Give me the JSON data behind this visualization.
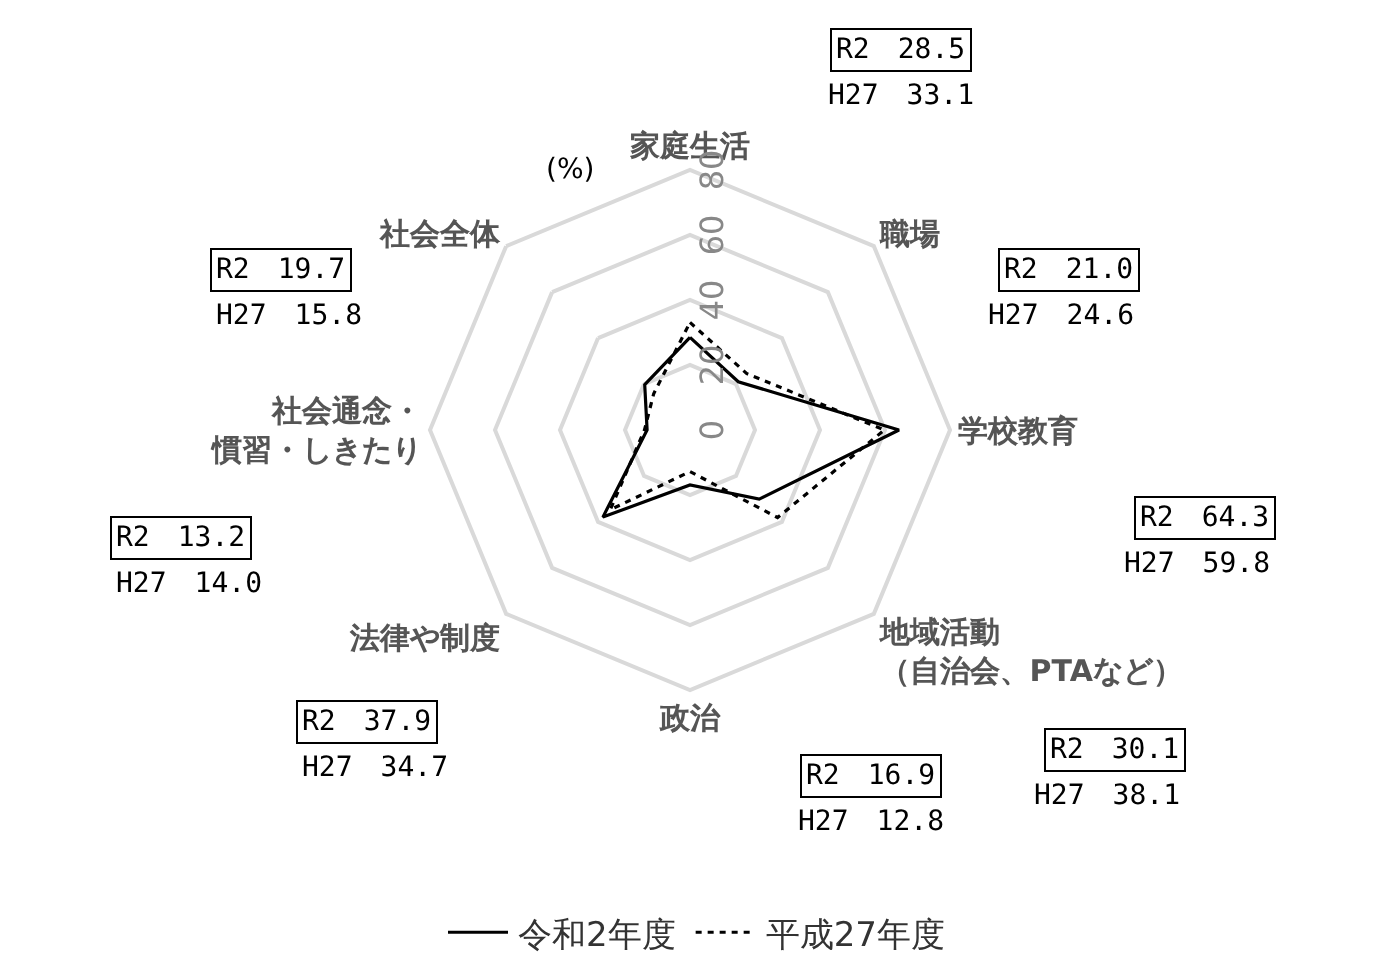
{
  "chart_data": {
    "type": "radar",
    "ylabel": "(%)",
    "categories": [
      "家庭生活",
      "職場",
      "学校教育",
      "地域活動（自治会、PTAなど）",
      "政治",
      "法律や制度",
      "社会通念・慣習・しきたり",
      "社会全体"
    ],
    "series": [
      {
        "name": "令和2年度",
        "color": "#000000",
        "line_style": "solid",
        "values": [
          28.5,
          21.0,
          64.3,
          30.1,
          16.9,
          37.9,
          13.2,
          19.7
        ]
      },
      {
        "name": "平成27年度",
        "color": "#000000",
        "line_style": "dotted",
        "values": [
          33.1,
          24.6,
          59.8,
          38.1,
          12.8,
          34.7,
          14.0,
          15.8
        ]
      }
    ],
    "annotations": [
      "R2　28.5",
      "H27　33.1",
      "R2　21.0",
      "H27　24.6",
      "R2　64.3",
      "H27　59.8",
      "R2　30.1",
      "H27　38.1",
      "R2　16.9",
      "H27　12.8",
      "R2　37.9",
      "H27　34.7",
      "R2　13.2",
      "H27　14.0",
      "R2　19.7",
      "H27　15.8"
    ],
    "ylim": [
      0,
      80
    ],
    "yticks": [
      0,
      20,
      40,
      60,
      80
    ],
    "grid": true,
    "legend": "bottom",
    "marker": "none"
  }
}
